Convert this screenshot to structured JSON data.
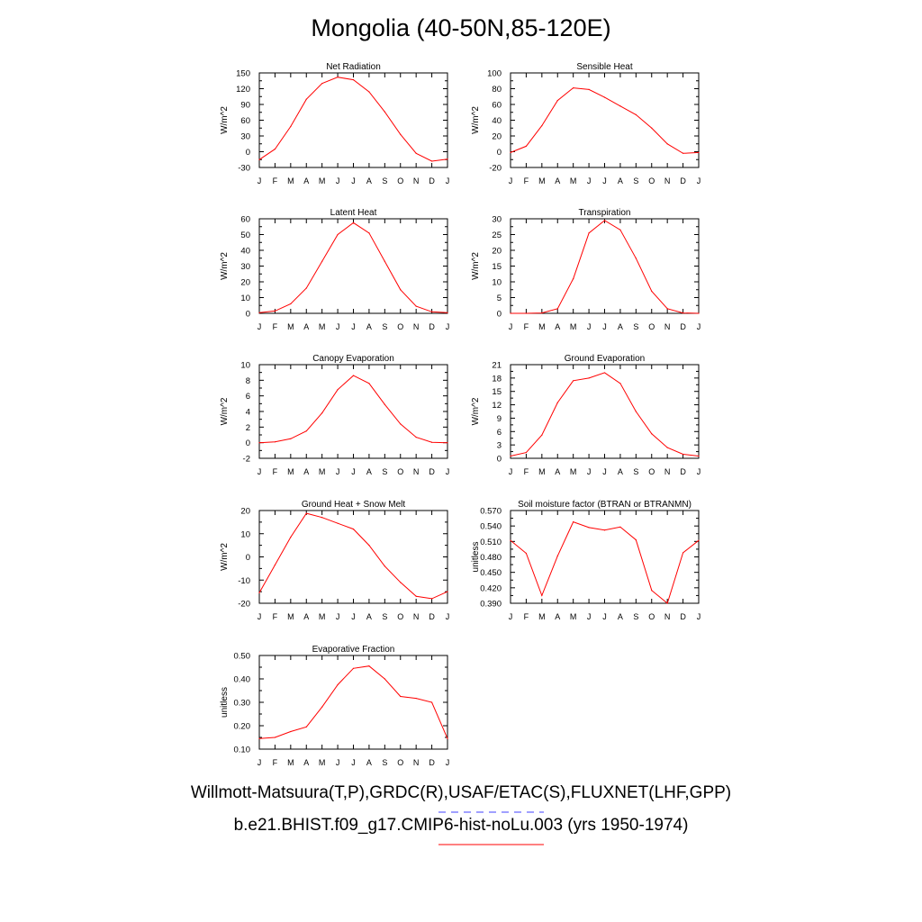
{
  "page": {
    "title": "Mongolia (40-50N,85-120E)",
    "legend": {
      "obs_label": "Willmott-Matsuura(T,P),GRDC(R),USAF/ETAC(S),FLUXNET(LHF,GPP)",
      "obs_color": "#4040ff",
      "obs_style": "dashed",
      "model_label": "b.e21.BHIST.f09_g17.CMIP6-hist-noLu.003 (yrs 1950-1974)",
      "model_color": "#ff0000",
      "model_style": "solid"
    }
  },
  "chart_data": [
    {
      "type": "line",
      "title": "Net Radiation",
      "ylabel": "W/m^2",
      "categories": [
        "J",
        "F",
        "M",
        "A",
        "M",
        "J",
        "J",
        "A",
        "S",
        "O",
        "N",
        "D",
        "J"
      ],
      "ylim": [
        -30,
        150
      ],
      "yticks": [
        "150",
        "120",
        "90",
        "60",
        "30",
        "0",
        "-30"
      ],
      "series": [
        {
          "values": [
            -15,
            5,
            48,
            100,
            130,
            142,
            137,
            114,
            76,
            33,
            -3,
            -18,
            -14
          ],
          "color": "#ff0000"
        }
      ]
    },
    {
      "type": "line",
      "title": "Sensible Heat",
      "ylabel": "W/m^2",
      "categories": [
        "J",
        "F",
        "M",
        "A",
        "M",
        "J",
        "J",
        "A",
        "S",
        "O",
        "N",
        "D",
        "J"
      ],
      "ylim": [
        -20,
        100
      ],
      "yticks": [
        "100",
        "80",
        "60",
        "40",
        "20",
        "0",
        "-20"
      ],
      "series": [
        {
          "values": [
            -1,
            7,
            33,
            65,
            81,
            79,
            69,
            58,
            47,
            30,
            10,
            -2,
            -1
          ],
          "color": "#ff0000"
        }
      ]
    },
    {
      "type": "line",
      "title": "Latent Heat",
      "ylabel": "W/m^2",
      "categories": [
        "J",
        "F",
        "M",
        "A",
        "M",
        "J",
        "J",
        "A",
        "S",
        "O",
        "N",
        "D",
        "J"
      ],
      "ylim": [
        0,
        60
      ],
      "yticks": [
        "60",
        "50",
        "40",
        "30",
        "20",
        "10",
        "0"
      ],
      "series": [
        {
          "values": [
            0.4,
            1.5,
            6,
            16,
            33,
            50,
            57.5,
            51,
            33,
            15,
            4.5,
            1,
            0.4
          ],
          "color": "#ff0000"
        }
      ]
    },
    {
      "type": "line",
      "title": "Transpiration",
      "ylabel": "W/m^2",
      "categories": [
        "J",
        "F",
        "M",
        "A",
        "M",
        "J",
        "J",
        "A",
        "S",
        "O",
        "N",
        "D",
        "J"
      ],
      "ylim": [
        0,
        30
      ],
      "yticks": [
        "30",
        "25",
        "20",
        "15",
        "10",
        "5",
        "0"
      ],
      "series": [
        {
          "values": [
            0,
            0,
            0.1,
            1.5,
            11,
            25.5,
            29.5,
            26.5,
            17.5,
            7,
            1.5,
            0.1,
            0
          ],
          "color": "#ff0000"
        }
      ]
    },
    {
      "type": "line",
      "title": "Canopy Evaporation",
      "ylabel": "W/m^2",
      "categories": [
        "J",
        "F",
        "M",
        "A",
        "M",
        "J",
        "J",
        "A",
        "S",
        "O",
        "N",
        "D",
        "J"
      ],
      "ylim": [
        -2,
        10
      ],
      "yticks": [
        "10",
        "8",
        "6",
        "4",
        "2",
        "0",
        "-2"
      ],
      "series": [
        {
          "values": [
            0,
            0.1,
            0.5,
            1.5,
            3.8,
            6.8,
            8.6,
            7.6,
            4.9,
            2.4,
            0.7,
            0.05,
            0
          ],
          "color": "#ff0000"
        }
      ]
    },
    {
      "type": "line",
      "title": "Ground Evaporation",
      "ylabel": "W/m^2",
      "categories": [
        "J",
        "F",
        "M",
        "A",
        "M",
        "J",
        "J",
        "A",
        "S",
        "O",
        "N",
        "D",
        "J"
      ],
      "ylim": [
        0,
        21
      ],
      "yticks": [
        "21",
        "18",
        "15",
        "12",
        "9",
        "6",
        "3",
        "0"
      ],
      "series": [
        {
          "values": [
            0.5,
            1.3,
            5.2,
            12.5,
            17.4,
            18,
            19.2,
            16.8,
            10.5,
            5.5,
            2.4,
            0.9,
            0.5
          ],
          "color": "#ff0000"
        }
      ]
    },
    {
      "type": "line",
      "title": "Ground Heat + Snow Melt",
      "ylabel": "W/m^2",
      "categories": [
        "J",
        "F",
        "M",
        "A",
        "M",
        "J",
        "J",
        "A",
        "S",
        "O",
        "N",
        "D",
        "J"
      ],
      "ylim": [
        -20,
        20
      ],
      "yticks": [
        "20",
        "10",
        "0",
        "-10",
        "-20"
      ],
      "series": [
        {
          "values": [
            -15.5,
            -3.5,
            8.5,
            18.8,
            17,
            14.5,
            12,
            5,
            -4,
            -11,
            -17,
            -18,
            -15
          ],
          "color": "#ff0000"
        }
      ]
    },
    {
      "type": "line",
      "title": "Soil moisture factor (BTRAN or BTRANMN)",
      "ylabel": "unitless",
      "categories": [
        "J",
        "F",
        "M",
        "A",
        "M",
        "J",
        "J",
        "A",
        "S",
        "O",
        "N",
        "D",
        "J"
      ],
      "ylim": [
        0.39,
        0.57
      ],
      "yticks": [
        "0.570",
        "0.540",
        "0.510",
        "0.480",
        "0.450",
        "0.420",
        "0.390"
      ],
      "series": [
        {
          "values": [
            0.512,
            0.487,
            0.405,
            0.482,
            0.548,
            0.537,
            0.532,
            0.538,
            0.513,
            0.415,
            0.39,
            0.488,
            0.512
          ],
          "color": "#ff0000"
        }
      ]
    },
    {
      "type": "line",
      "title": "Evaporative Fraction",
      "ylabel": "unitless",
      "categories": [
        "J",
        "F",
        "M",
        "A",
        "M",
        "J",
        "J",
        "A",
        "S",
        "O",
        "N",
        "D",
        "J"
      ],
      "ylim": [
        0.1,
        0.5
      ],
      "yticks": [
        "0.50",
        "0.40",
        "0.30",
        "0.20",
        "0.10"
      ],
      "series": [
        {
          "values": [
            0.145,
            0.15,
            0.175,
            0.195,
            0.28,
            0.375,
            0.445,
            0.455,
            0.4,
            0.325,
            0.317,
            0.3,
            0.145
          ],
          "color": "#ff0000"
        }
      ]
    }
  ]
}
